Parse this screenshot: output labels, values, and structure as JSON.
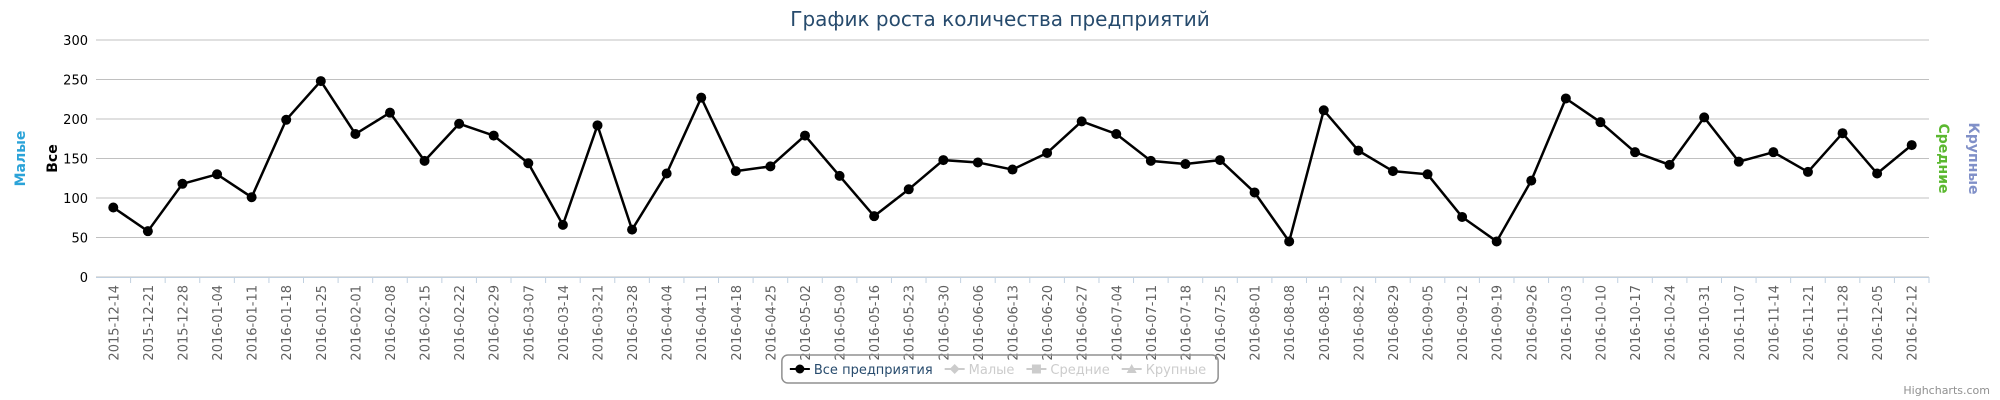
{
  "chart_data": {
    "type": "line",
    "title": "График роста количества предприятий",
    "y_axis_titles": [
      {
        "text": "Малые",
        "color": "#2ba3d8"
      },
      {
        "text": "Все",
        "color": "#000000"
      }
    ],
    "y2_axis_titles": [
      {
        "text": "Средние",
        "color": "#5bb830"
      },
      {
        "text": "Крупные",
        "color": "#8090c8"
      }
    ],
    "categories": [
      "2015-12-14",
      "2015-12-21",
      "2015-12-28",
      "2016-01-04",
      "2016-01-11",
      "2016-01-18",
      "2016-01-25",
      "2016-02-01",
      "2016-02-08",
      "2016-02-15",
      "2016-02-22",
      "2016-02-29",
      "2016-03-07",
      "2016-03-14",
      "2016-03-21",
      "2016-03-28",
      "2016-04-04",
      "2016-04-11",
      "2016-04-18",
      "2016-04-25",
      "2016-05-02",
      "2016-05-09",
      "2016-05-16",
      "2016-05-23",
      "2016-05-30",
      "2016-06-06",
      "2016-06-13",
      "2016-06-20",
      "2016-06-27",
      "2016-07-04",
      "2016-07-11",
      "2016-07-18",
      "2016-07-25",
      "2016-08-01",
      "2016-08-08",
      "2016-08-15",
      "2016-08-22",
      "2016-08-29",
      "2016-09-05",
      "2016-09-12",
      "2016-09-19",
      "2016-09-26",
      "2016-10-03",
      "2016-10-10",
      "2016-10-17",
      "2016-10-24",
      "2016-10-31",
      "2016-11-07",
      "2016-11-14",
      "2016-11-21",
      "2016-11-28",
      "2016-12-05",
      "2016-12-12"
    ],
    "series": [
      {
        "name": "Все предприятия",
        "color": "#000000",
        "marker": "circle",
        "visible": true,
        "values": [
          88,
          58,
          118,
          130,
          101,
          199,
          248,
          181,
          208,
          147,
          194,
          179,
          144,
          66,
          192,
          60,
          131,
          227,
          134,
          140,
          179,
          128,
          77,
          111,
          148,
          145,
          136,
          157,
          197,
          181,
          147,
          143,
          148,
          107,
          45,
          211,
          160,
          134,
          130,
          76,
          45,
          122,
          226,
          196,
          158,
          142,
          202,
          146,
          158,
          133,
          182,
          131,
          167
        ]
      },
      {
        "name": "Малые",
        "color": "#2ba3d8",
        "marker": "diamond",
        "visible": false
      },
      {
        "name": "Средние",
        "color": "#5bb830",
        "marker": "square",
        "visible": false
      },
      {
        "name": "Крупные",
        "color": "#8090c8",
        "marker": "triangle",
        "visible": false
      }
    ],
    "ylim": [
      0,
      300
    ],
    "yticks": [
      0,
      50,
      100,
      150,
      200,
      250,
      300
    ],
    "grid": true,
    "legend": "bottom",
    "credits": "Highcharts.com"
  }
}
